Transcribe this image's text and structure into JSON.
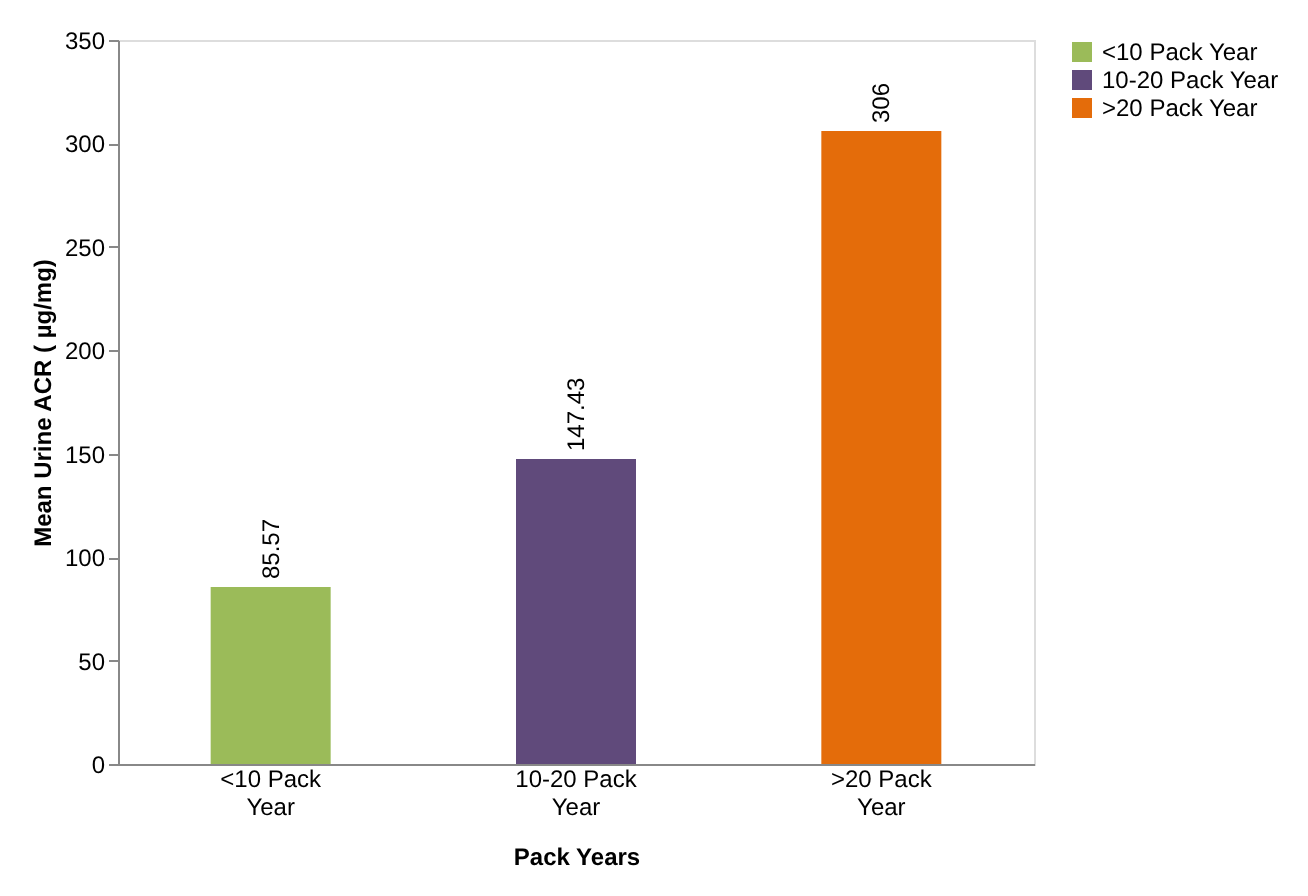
{
  "chart_data": {
    "type": "bar",
    "xlabel": "Pack Years",
    "ylabel": "Mean Urine ACR ( µg/mg)",
    "categories": [
      "<10 Pack Year",
      "10-20 Pack Year",
      ">20 Pack Year"
    ],
    "series": [
      {
        "name": "<10 Pack Year",
        "color": "#9bbb59",
        "values": [
          85.57,
          null,
          null
        ]
      },
      {
        "name": "10-20 Pack Year",
        "color": "#604a7b",
        "values": [
          null,
          147.43,
          null
        ]
      },
      {
        "name": ">20 Pack Year",
        "color": "#e46c0a",
        "values": [
          null,
          null,
          306
        ]
      }
    ],
    "ylim": [
      0,
      350
    ],
    "yticks": [
      0,
      50,
      100,
      150,
      200,
      250,
      300,
      350
    ],
    "grid": false,
    "legend": "right",
    "data_labels": true
  }
}
